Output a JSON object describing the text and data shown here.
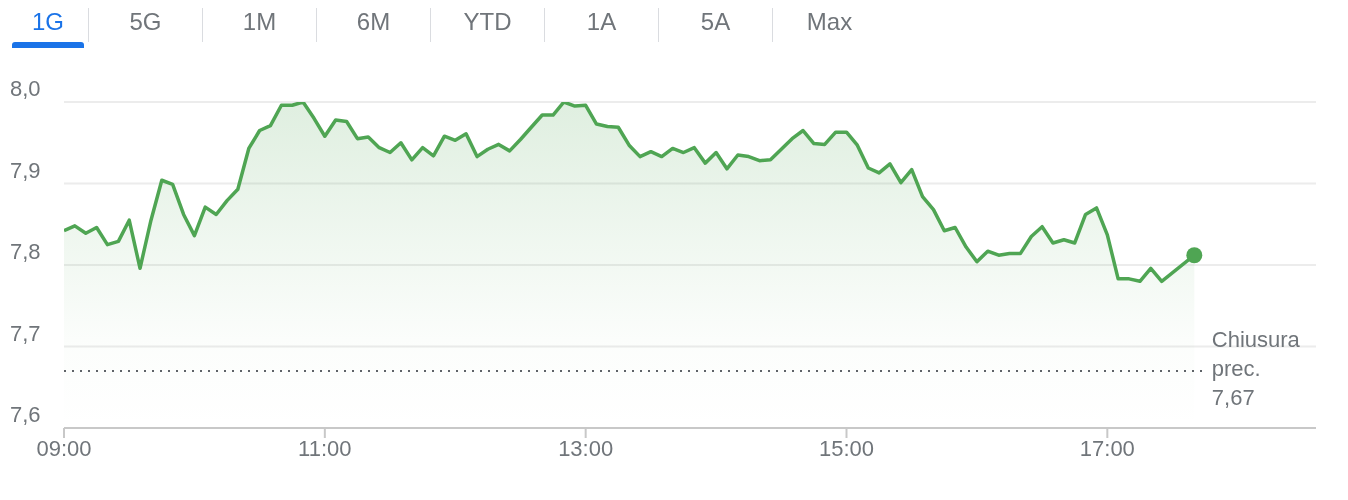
{
  "chart_data": {
    "type": "area",
    "annotations": [
      "1G",
      "5G",
      "1M",
      "6M",
      "YTD",
      "1A",
      "5A",
      "Max"
    ],
    "x": [
      9,
      9.083,
      9.167,
      9.25,
      9.333,
      9.417,
      9.5,
      9.583,
      9.667,
      9.75,
      9.833,
      9.917,
      10,
      10.083,
      10.167,
      10.25,
      10.333,
      10.417,
      10.5,
      10.583,
      10.667,
      10.75,
      10.833,
      10.917,
      11,
      11.083,
      11.167,
      11.25,
      11.333,
      11.417,
      11.5,
      11.583,
      11.667,
      11.75,
      11.833,
      11.917,
      12,
      12.083,
      12.167,
      12.25,
      12.333,
      12.417,
      12.5,
      12.583,
      12.667,
      12.75,
      12.833,
      12.917,
      13,
      13.083,
      13.167,
      13.25,
      13.333,
      13.417,
      13.5,
      13.583,
      13.667,
      13.75,
      13.833,
      13.917,
      14,
      14.083,
      14.167,
      14.25,
      14.333,
      14.417,
      14.5,
      14.583,
      14.667,
      14.75,
      14.833,
      14.917,
      15,
      15.083,
      15.167,
      15.25,
      15.333,
      15.417,
      15.5,
      15.583,
      15.667,
      15.75,
      15.833,
      15.917,
      16,
      16.083,
      16.167,
      16.25,
      16.333,
      16.417,
      16.5,
      16.583,
      16.667,
      16.75,
      16.833,
      16.917,
      17,
      17.083,
      17.167,
      17.25,
      17.333,
      17.417,
      17.667
    ],
    "series": [
      {
        "color": "#4fa553",
        "values": [
          7.842,
          7.848,
          7.839,
          7.846,
          7.825,
          7.829,
          7.855,
          7.796,
          7.855,
          7.904,
          7.899,
          7.862,
          7.836,
          7.871,
          7.862,
          7.879,
          7.893,
          7.943,
          7.965,
          7.971,
          7.996,
          7.996,
          8.0,
          7.98,
          7.958,
          7.978,
          7.976,
          7.955,
          7.957,
          7.944,
          7.938,
          7.95,
          7.929,
          7.944,
          7.934,
          7.958,
          7.953,
          7.961,
          7.933,
          7.942,
          7.948,
          7.94,
          7.954,
          7.969,
          7.984,
          7.984,
          8.0,
          7.995,
          7.996,
          7.973,
          7.97,
          7.969,
          7.947,
          7.933,
          7.939,
          7.933,
          7.943,
          7.938,
          7.944,
          7.925,
          7.938,
          7.918,
          7.935,
          7.933,
          7.928,
          7.929,
          7.942,
          7.955,
          7.965,
          7.949,
          7.948,
          7.963,
          7.963,
          7.947,
          7.919,
          7.913,
          7.924,
          7.901,
          7.917,
          7.884,
          7.868,
          7.842,
          7.846,
          7.822,
          7.804,
          7.817,
          7.812,
          7.814,
          7.814,
          7.835,
          7.847,
          7.827,
          7.831,
          7.827,
          7.862,
          7.87,
          7.837,
          7.783,
          7.783,
          7.78,
          7.796,
          7.78,
          7.812
        ]
      }
    ],
    "xlim": [
      9,
      18.6
    ],
    "xticks": [
      {
        "value": 9,
        "label": "09:00"
      },
      {
        "value": 11,
        "label": "11:00"
      },
      {
        "value": 13,
        "label": "13:00"
      },
      {
        "value": 15,
        "label": "15:00"
      },
      {
        "value": 17,
        "label": "17:00"
      }
    ],
    "ylim": [
      7.6,
      8.0
    ],
    "yticks": [
      {
        "value": 7.6,
        "label": "7,6"
      },
      {
        "value": 7.7,
        "label": "7,7"
      },
      {
        "value": 7.8,
        "label": "7,8"
      },
      {
        "value": 7.9,
        "label": "7,9"
      },
      {
        "value": 8,
        "label": "8,0"
      }
    ],
    "grid": "y",
    "ref_lines": [
      {
        "axis": "y",
        "value": 7.67,
        "label": "Chiusura prec. 7,67",
        "color": "#5f6368",
        "line_style": "dotted"
      }
    ]
  }
}
